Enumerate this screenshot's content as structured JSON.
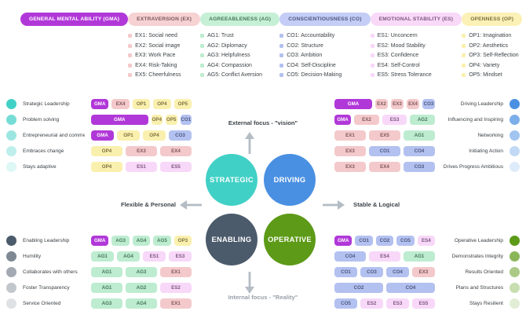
{
  "colors": {
    "gma": "#b138d8",
    "ex": "#f4c9cb",
    "ag": "#bdecd0",
    "co": "#b3c1f0",
    "es": "#f8d8f8",
    "op": "#faf0ae",
    "ex_header": "#f7d2d3",
    "ag_header": "#c6f0d6",
    "co_header": "#c3cdf5",
    "es_header": "#f8d9f8",
    "op_header": "#fbf1b6",
    "ex_text": "#7d585c",
    "ag_text": "#47785c",
    "co_text": "#4d587e",
    "es_text": "#7d5580",
    "op_text": "#7d7040",
    "strategic": "#41d0c6",
    "driving": "#4a90e2",
    "enabling": "#4c5b6b",
    "operative": "#5d9a17",
    "arrow": "#b4bcc4"
  },
  "factors": [
    {
      "code": "gma",
      "label": "GENERAL MENTAL ABILITY (GMA)",
      "items": []
    },
    {
      "code": "ex",
      "label": "EXTRAVERSION (EX)",
      "items": [
        "EX1: Social need",
        "EX2: Social image",
        "EX3: Work Pace",
        "EX4: Risk-Taking",
        "EX5: Cheerfulness"
      ]
    },
    {
      "code": "ag",
      "label": "AGREEABLENESS (AG)",
      "items": [
        "AG1: Trust",
        "AG2: Diplomacy",
        "AG3: Helpfulness",
        "AG4: Compassion",
        "AG5: Conflict Aversion"
      ]
    },
    {
      "code": "co",
      "label": "CONSCIENTIOUSNESS (CO)",
      "items": [
        "CO1: Accountability",
        "CO2: Structure",
        "CO3: Ambition",
        "CO4: Self-Discipline",
        "CO5: Decision-Making"
      ]
    },
    {
      "code": "es",
      "label": "EMOTIONAL STABILITY (ES)",
      "items": [
        "ES1: Unconcern",
        "ES2: Mood Stability",
        "ES3: Confidence",
        "ES4: Self-Control",
        "ES5: Stress Tolerance"
      ]
    },
    {
      "code": "op",
      "label": "OPENNESS (OP)",
      "items": [
        "OP1: Imagination",
        "OP2: Aesthetics",
        "OP3: Self-Reflection",
        "OP4: Variety",
        "OP5: Mindset"
      ]
    }
  ],
  "center": {
    "top_label": "External focus - \"vision\"",
    "bottom_label": "Internal focus - \"Reality\"",
    "left_label": "Flexible & Personal",
    "right_label": "Stable & Logical",
    "circles": [
      {
        "id": "strategic",
        "label": "STRATEGIC"
      },
      {
        "id": "driving",
        "label": "DRIVING"
      },
      {
        "id": "enabling",
        "label": "ENABLING"
      },
      {
        "id": "operative",
        "label": "OPERATIVE"
      }
    ]
  },
  "groups": [
    {
      "id": "strategic",
      "position": "top-left",
      "side": "left",
      "rows": [
        {
          "label": "Strategic Leadership",
          "chips": [
            {
              "c": "GMA",
              "t": "gma"
            },
            {
              "c": "EX4",
              "t": "ex"
            },
            {
              "c": "OP1",
              "t": "op"
            },
            {
              "c": "OP4",
              "t": "op"
            },
            {
              "c": "OP5",
              "t": "op"
            }
          ]
        },
        {
          "label": "Problem solving",
          "chips": [
            {
              "c": "GMA",
              "t": "gma",
              "w": 5
            },
            {
              "c": "OP4",
              "t": "op"
            },
            {
              "c": "OP5",
              "t": "op"
            },
            {
              "c": "CO1",
              "t": "co"
            }
          ]
        },
        {
          "label": "Entrepreneurial and commercial",
          "chips": [
            {
              "c": "GMA",
              "t": "gma"
            },
            {
              "c": "OP1",
              "t": "op"
            },
            {
              "c": "OP4",
              "t": "op"
            },
            {
              "c": "CO3",
              "t": "co"
            }
          ]
        },
        {
          "label": "Embraces change",
          "chips": [
            {
              "c": "OP4",
              "t": "op"
            },
            {
              "c": "EX3",
              "t": "ex"
            },
            {
              "c": "EX4",
              "t": "ex"
            }
          ]
        },
        {
          "label": "Stays adaptive",
          "chips": [
            {
              "c": "OP4",
              "t": "op"
            },
            {
              "c": "ES1",
              "t": "es"
            },
            {
              "c": "ES5",
              "t": "es"
            }
          ]
        }
      ]
    },
    {
      "id": "driving",
      "position": "top-right",
      "side": "right",
      "rows": [
        {
          "label": "Driving Leadership",
          "chips": [
            {
              "c": "GMA",
              "t": "gma",
              "w": 3
            },
            {
              "c": "EX2",
              "t": "ex"
            },
            {
              "c": "EX3",
              "t": "ex"
            },
            {
              "c": "EX4",
              "t": "ex"
            },
            {
              "c": "CO3",
              "t": "co"
            }
          ]
        },
        {
          "label": "Influencing and Inspiring",
          "chips": [
            {
              "c": "GMA",
              "t": "gma",
              "w": 2
            },
            {
              "c": "EX2",
              "t": "ex",
              "w": 3
            },
            {
              "c": "ES3",
              "t": "es",
              "w": 3
            },
            {
              "c": "AG2",
              "t": "ag",
              "w": 3
            }
          ]
        },
        {
          "label": "Networking",
          "chips": [
            {
              "c": "EX1",
              "t": "ex"
            },
            {
              "c": "EX5",
              "t": "ex"
            },
            {
              "c": "AG1",
              "t": "ag"
            }
          ]
        },
        {
          "label": "Initiating Action",
          "chips": [
            {
              "c": "EX3",
              "t": "ex"
            },
            {
              "c": "CO1",
              "t": "co"
            },
            {
              "c": "CO4",
              "t": "co"
            }
          ]
        },
        {
          "label": "Drives Progress Ambitious",
          "chips": [
            {
              "c": "EX3",
              "t": "ex"
            },
            {
              "c": "EX4",
              "t": "ex"
            },
            {
              "c": "CO3",
              "t": "co"
            }
          ]
        }
      ]
    },
    {
      "id": "enabling",
      "position": "bottom-left",
      "side": "left",
      "rows": [
        {
          "label": "Enabling Leadership",
          "chips": [
            {
              "c": "GMA",
              "t": "gma"
            },
            {
              "c": "AG3",
              "t": "ag"
            },
            {
              "c": "AG4",
              "t": "ag"
            },
            {
              "c": "AG5",
              "t": "ag"
            },
            {
              "c": "OP3",
              "t": "op"
            }
          ]
        },
        {
          "label": "Humility",
          "chips": [
            {
              "c": "AG1",
              "t": "ag"
            },
            {
              "c": "AG4",
              "t": "ag"
            },
            {
              "c": "ES1",
              "t": "es"
            },
            {
              "c": "ES3",
              "t": "es"
            }
          ]
        },
        {
          "label": "Collaborates with others",
          "chips": [
            {
              "c": "AG1",
              "t": "ag"
            },
            {
              "c": "AG3",
              "t": "ag"
            },
            {
              "c": "EX1",
              "t": "ex"
            }
          ]
        },
        {
          "label": "Foster Transparency",
          "chips": [
            {
              "c": "AG1",
              "t": "ag"
            },
            {
              "c": "AG2",
              "t": "ag"
            },
            {
              "c": "ES2",
              "t": "es"
            }
          ]
        },
        {
          "label": "Service Oriented",
          "chips": [
            {
              "c": "AG3",
              "t": "ag"
            },
            {
              "c": "AG4",
              "t": "ag"
            },
            {
              "c": "EX1",
              "t": "ex"
            }
          ]
        }
      ]
    },
    {
      "id": "operative",
      "position": "bottom-right",
      "side": "right",
      "rows": [
        {
          "label": "Operative Leadership",
          "chips": [
            {
              "c": "GMA",
              "t": "gma"
            },
            {
              "c": "CO1",
              "t": "co"
            },
            {
              "c": "CO2",
              "t": "co"
            },
            {
              "c": "CO5",
              "t": "co"
            },
            {
              "c": "ES4",
              "t": "es"
            }
          ]
        },
        {
          "label": "Demonstrates Integrity",
          "chips": [
            {
              "c": "CO4",
              "t": "co"
            },
            {
              "c": "ES4",
              "t": "es"
            },
            {
              "c": "AG1",
              "t": "ag"
            }
          ]
        },
        {
          "label": "Results Oriented",
          "chips": [
            {
              "c": "CO1",
              "t": "co"
            },
            {
              "c": "CO3",
              "t": "co"
            },
            {
              "c": "CO4",
              "t": "co"
            },
            {
              "c": "EX3",
              "t": "ex"
            }
          ]
        },
        {
          "label": "Plans and Structures",
          "chips": [
            {
              "c": "CO2",
              "t": "co"
            },
            {
              "c": "CO4",
              "t": "co"
            }
          ]
        },
        {
          "label": "Stays Resilient",
          "chips": [
            {
              "c": "CO5",
              "t": "co"
            },
            {
              "c": "ES2",
              "t": "es"
            },
            {
              "c": "ES3",
              "t": "es"
            },
            {
              "c": "ES5",
              "t": "es"
            }
          ]
        }
      ]
    }
  ]
}
